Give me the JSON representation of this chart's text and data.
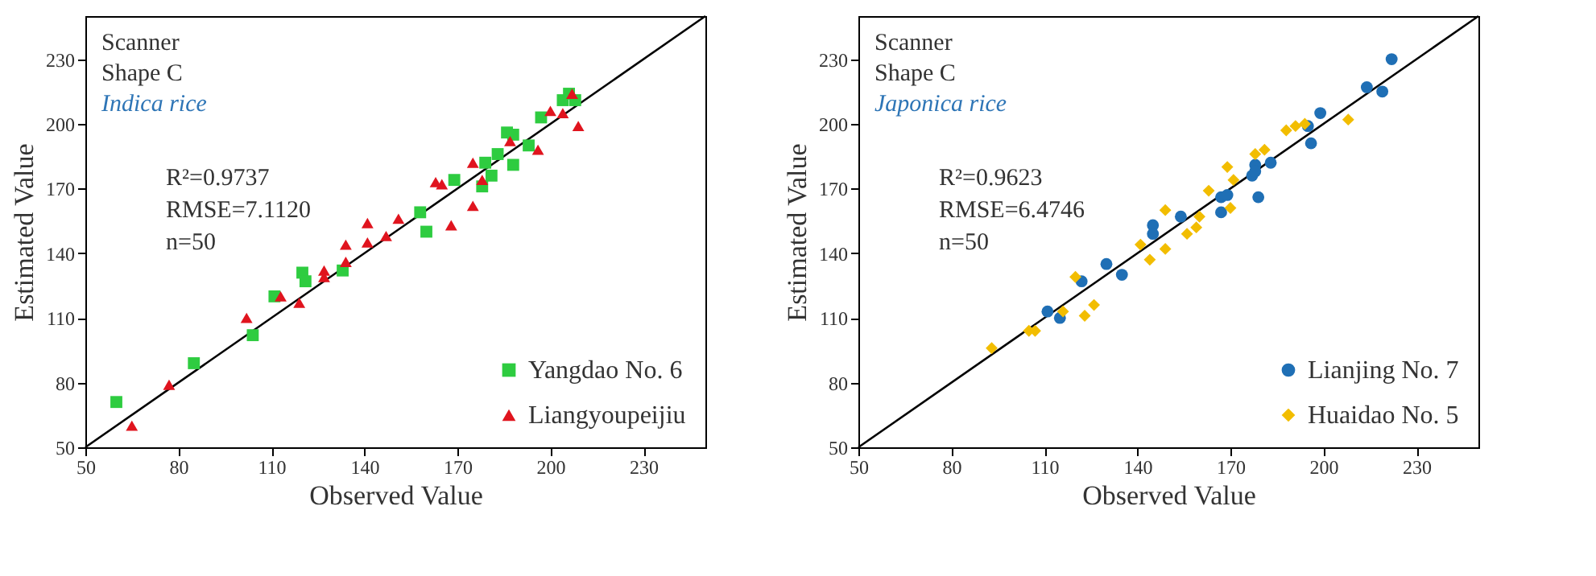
{
  "chart_data": [
    {
      "type": "scatter",
      "xlabel": "Observed Value",
      "ylabel": "Estimated Value",
      "xlim": [
        50,
        250
      ],
      "ylim": [
        50,
        250
      ],
      "xticks": [
        50,
        80,
        110,
        140,
        170,
        200,
        230
      ],
      "yticks": [
        50,
        80,
        110,
        140,
        170,
        200,
        230
      ],
      "grid": false,
      "legend": "bottom right",
      "annotations": [
        "Scanner",
        "Shape C",
        "Indica rice",
        "R²=0.9737",
        "RMSE=7.1120",
        "n=50"
      ],
      "series": [
        {
          "type": "line",
          "color": "#000000",
          "marker": "none",
          "x": [
            50,
            250
          ],
          "values": [
            50,
            250
          ]
        },
        {
          "name": "Yangdao No. 6",
          "color": "#2ecc40",
          "marker": "square",
          "x": [
            60,
            85,
            104,
            111,
            120,
            121,
            133,
            158,
            160,
            169,
            178,
            179,
            181,
            183,
            186,
            188,
            188,
            193,
            197,
            204,
            206,
            208
          ],
          "values": [
            71,
            89,
            102,
            120,
            131,
            127,
            132,
            159,
            150,
            174,
            171,
            182,
            176,
            186,
            196,
            195,
            181,
            190,
            203,
            211,
            214,
            211
          ]
        },
        {
          "name": "Liangyoupeijiu",
          "color": "#e0141e",
          "marker": "triangle",
          "x": [
            65,
            77,
            102,
            113,
            119,
            127,
            127,
            134,
            134,
            141,
            141,
            147,
            151,
            163,
            165,
            168,
            175,
            175,
            178,
            187,
            196,
            200,
            204,
            207,
            209
          ],
          "values": [
            60,
            79,
            110,
            120,
            117,
            132,
            129,
            144,
            136,
            154,
            145,
            148,
            156,
            173,
            172,
            153,
            162,
            182,
            174,
            192,
            188,
            206,
            205,
            214,
            199
          ]
        }
      ]
    },
    {
      "type": "scatter",
      "xlabel": "Observed Value",
      "ylabel": "Estimated Value",
      "xlim": [
        50,
        250
      ],
      "ylim": [
        50,
        250
      ],
      "xticks": [
        50,
        80,
        110,
        140,
        170,
        200,
        230
      ],
      "yticks": [
        50,
        80,
        110,
        140,
        170,
        200,
        230
      ],
      "grid": false,
      "legend": "bottom right",
      "annotations": [
        "Scanner",
        "Shape C",
        "Japonica rice",
        "R²=0.9623",
        "RMSE=6.4746",
        "n=50"
      ],
      "series": [
        {
          "type": "line",
          "color": "#000000",
          "marker": "none",
          "x": [
            50,
            250
          ],
          "values": [
            50,
            250
          ]
        },
        {
          "name": "Lianjing No. 7",
          "color": "#1f6fb5",
          "marker": "circle",
          "x": [
            111,
            115,
            122,
            130,
            135,
            145,
            145,
            154,
            167,
            169,
            167,
            177,
            178,
            178,
            179,
            183,
            195,
            196,
            199,
            214,
            219,
            222
          ],
          "values": [
            113,
            110,
            127,
            135,
            130,
            153,
            149,
            157,
            166,
            167,
            159,
            176,
            181,
            178,
            166,
            182,
            199,
            191,
            205,
            217,
            215,
            230
          ]
        },
        {
          "name": "Huaidao No. 5",
          "color": "#f2bd00",
          "marker": "diamond",
          "x": [
            93,
            105,
            107,
            116,
            120,
            123,
            126,
            141,
            144,
            149,
            149,
            156,
            159,
            160,
            163,
            169,
            170,
            171,
            178,
            181,
            188,
            191,
            194,
            208
          ],
          "values": [
            96,
            104,
            104,
            113,
            129,
            111,
            116,
            144,
            137,
            160,
            142,
            149,
            152,
            157,
            169,
            180,
            161,
            174,
            186,
            188,
            197,
            199,
            200,
            202
          ]
        }
      ]
    }
  ]
}
